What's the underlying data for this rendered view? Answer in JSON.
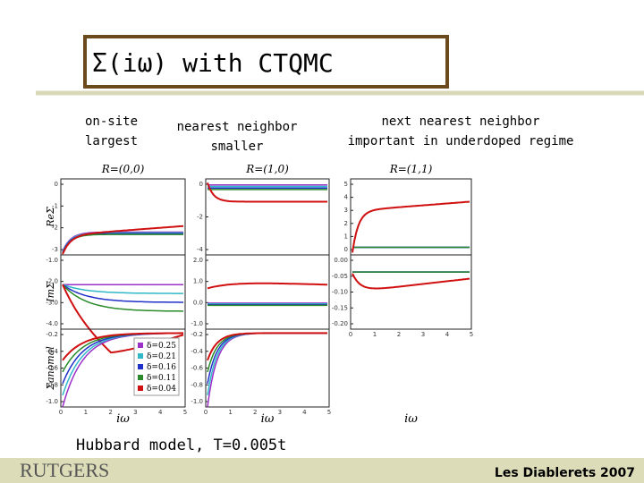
{
  "header": {
    "title": "Σ(iω) with CTQMC"
  },
  "notes": [
    {
      "lines": [
        "on-site",
        "largest"
      ]
    },
    {
      "lines": [
        "nearest neighbor",
        "smaller"
      ]
    },
    {
      "lines": [
        "next nearest neighbor",
        "important in underdoped regime"
      ]
    }
  ],
  "figure": {
    "columns": [
      {
        "title": "R=(0,0)"
      },
      {
        "title": "R=(1,0)"
      },
      {
        "title": "R=(1,1)"
      }
    ],
    "rows": [
      {
        "label": "ReΣ"
      },
      {
        "label": "ImΣ"
      },
      {
        "label": "Σanomal"
      }
    ],
    "x_label": "iω",
    "x_ticks": [
      "0",
      "1",
      "2",
      "3",
      "4",
      "5"
    ],
    "y_ticks": [
      [
        [
          "0",
          "-1",
          "-2",
          "-3"
        ],
        [
          "0",
          "-2",
          "-4"
        ],
        [
          "5",
          "4",
          "3",
          "2",
          "1",
          "0"
        ]
      ],
      [
        [
          "-1.0",
          "-2.0",
          "-3.0",
          "-4.0"
        ],
        [
          "2.0",
          "1.0",
          "0.0",
          "-1.0"
        ],
        [
          "0.00",
          "-0.05",
          "-0.10",
          "-0.15",
          "-0.20"
        ]
      ],
      [
        [
          "-0.2",
          "-0.4",
          "-0.6",
          "-0.8",
          "-1.0"
        ],
        [
          "-0.2",
          "-0.4",
          "-0.6",
          "-0.8",
          "-1.0"
        ],
        []
      ]
    ],
    "legend": [
      {
        "label": "δ=0.25",
        "color": "#9b30c8"
      },
      {
        "label": "δ=0.21",
        "color": "#30b8c8"
      },
      {
        "label": "δ=0.16",
        "color": "#2030c8"
      },
      {
        "label": "δ=0.11",
        "color": "#2a8a2a"
      },
      {
        "label": "δ=0.04",
        "color": "#d01010"
      }
    ]
  },
  "caption": "Hubbard model, T=0.005t",
  "footer": {
    "logo": "RUTGERS",
    "event": "Les Diablerets 2007"
  }
}
